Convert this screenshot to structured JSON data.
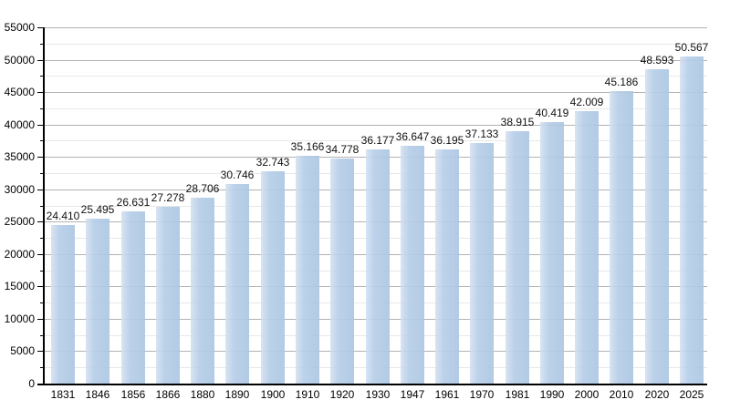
{
  "chart_data": {
    "type": "bar",
    "title": "",
    "xlabel": "",
    "ylabel": "",
    "categories": [
      "1831",
      "1846",
      "1856",
      "1866",
      "1880",
      "1890",
      "1900",
      "1910",
      "1920",
      "1930",
      "1947",
      "1961",
      "1970",
      "1981",
      "1990",
      "2000",
      "2010",
      "2020",
      "2025"
    ],
    "values": [
      24410,
      25495,
      26631,
      27278,
      28706,
      30746,
      32743,
      35166,
      34778,
      36177,
      36647,
      36195,
      37133,
      38915,
      40419,
      42009,
      45186,
      48593,
      50567
    ],
    "value_labels": [
      "24.410",
      "25.495",
      "26.631",
      "27.278",
      "28.706",
      "30.746",
      "32.743",
      "35.166",
      "34.778",
      "36.177",
      "36.647",
      "36.195",
      "37.133",
      "38.915",
      "40.419",
      "42.009",
      "45.186",
      "48.593",
      "50.567"
    ],
    "ylim": [
      0,
      55000
    ],
    "y_major_step": 5000,
    "y_minor_step": 2500,
    "y_tick_labels": [
      "0",
      "5000",
      "10000",
      "15000",
      "20000",
      "25000",
      "30000",
      "35000",
      "40000",
      "45000",
      "50000",
      "55000"
    ],
    "grid": "horizontal major and minor gridlines",
    "legend": "none",
    "colors": {
      "background": "#ffffff",
      "bar_fill_light": "rgba(211,224,240,0.88)",
      "bar_fill_mid": "rgba(182,206,232,0.92)",
      "bar_fill_dark": "rgba(172,198,226,0.92)",
      "gridline_major": "#b3b3b3",
      "gridline_minor": "#e8e8e8",
      "axis": "#000000",
      "label_text": "#000000"
    }
  }
}
